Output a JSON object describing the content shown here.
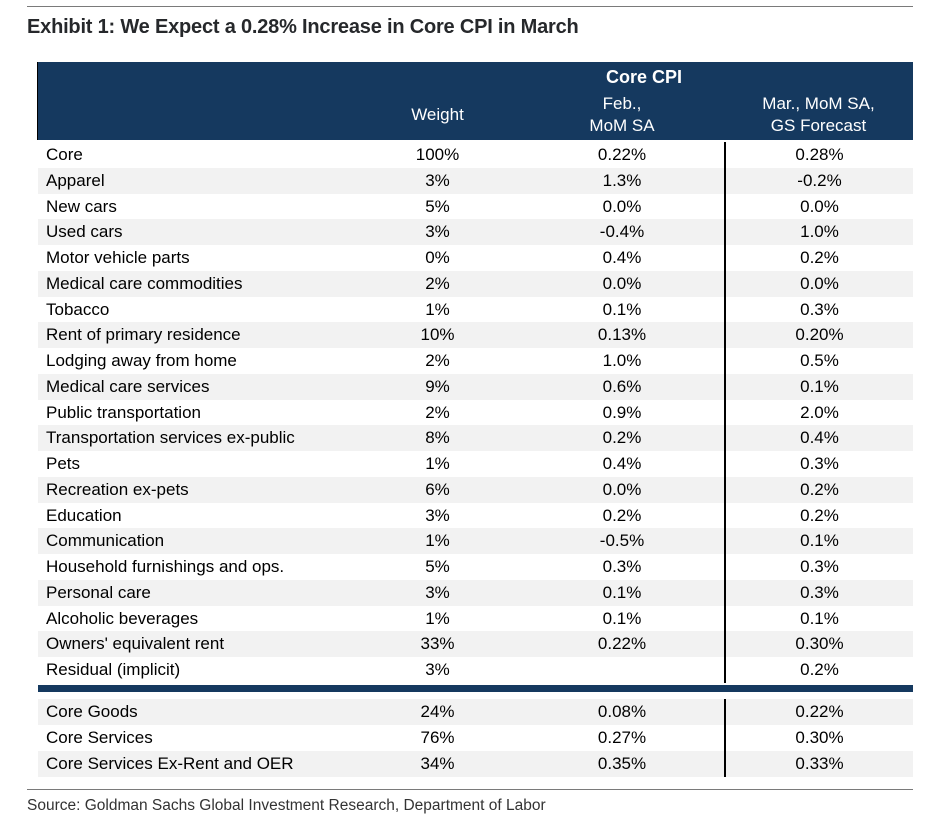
{
  "exhibit": {
    "title": "Exhibit 1: We Expect a 0.28% Increase in Core CPI in March",
    "source": "Source: Goldman Sachs Global Investment Research, Department of Labor"
  },
  "table": {
    "group_header": "Core CPI",
    "header": {
      "weight": "Weight",
      "feb": [
        "Feb.,",
        "MoM SA"
      ],
      "mar": [
        "Mar., MoM SA,",
        "GS Forecast"
      ]
    }
  },
  "colors": {
    "header_navy": "#15395f",
    "row_shade": "#f2f2f2",
    "divider_black": "#000000",
    "rule_gray": "#7a7a7a"
  },
  "chart_data": {
    "type": "table",
    "title": "Exhibit 1: We Expect a 0.28% Increase in Core CPI in March",
    "group_header": "Core CPI",
    "columns": [
      "",
      "Weight",
      "Feb., MoM SA",
      "Mar., MoM SA, GS Forecast"
    ],
    "rows": [
      {
        "label": "Core",
        "weight": "100%",
        "feb": "0.22%",
        "mar": "0.28%"
      },
      {
        "label": "Apparel",
        "weight": "3%",
        "feb": "1.3%",
        "mar": "-0.2%"
      },
      {
        "label": "New cars",
        "weight": "5%",
        "feb": "0.0%",
        "mar": "0.0%"
      },
      {
        "label": "Used cars",
        "weight": "3%",
        "feb": "-0.4%",
        "mar": "1.0%"
      },
      {
        "label": "Motor vehicle parts",
        "weight": "0%",
        "feb": "0.4%",
        "mar": "0.2%"
      },
      {
        "label": "Medical care commodities",
        "weight": "2%",
        "feb": "0.0%",
        "mar": "0.0%"
      },
      {
        "label": "Tobacco",
        "weight": "1%",
        "feb": "0.1%",
        "mar": "0.3%"
      },
      {
        "label": "Rent of primary residence",
        "weight": "10%",
        "feb": "0.13%",
        "mar": "0.20%"
      },
      {
        "label": "Lodging away from home",
        "weight": "2%",
        "feb": "1.0%",
        "mar": "0.5%"
      },
      {
        "label": "Medical care services",
        "weight": "9%",
        "feb": "0.6%",
        "mar": "0.1%"
      },
      {
        "label": "Public transportation",
        "weight": "2%",
        "feb": "0.9%",
        "mar": "2.0%"
      },
      {
        "label": "Transportation services ex-public",
        "weight": "8%",
        "feb": "0.2%",
        "mar": "0.4%"
      },
      {
        "label": "Pets",
        "weight": "1%",
        "feb": "0.4%",
        "mar": "0.3%"
      },
      {
        "label": "Recreation ex-pets",
        "weight": "6%",
        "feb": "0.0%",
        "mar": "0.2%"
      },
      {
        "label": "Education",
        "weight": "3%",
        "feb": "0.2%",
        "mar": "0.2%"
      },
      {
        "label": "Communication",
        "weight": "1%",
        "feb": "-0.5%",
        "mar": "0.1%"
      },
      {
        "label": "Household furnishings and ops.",
        "weight": "5%",
        "feb": "0.3%",
        "mar": "0.3%"
      },
      {
        "label": "Personal care",
        "weight": "3%",
        "feb": "0.1%",
        "mar": "0.3%"
      },
      {
        "label": "Alcoholic beverages",
        "weight": "1%",
        "feb": "0.1%",
        "mar": "0.1%"
      },
      {
        "label": "Owners' equivalent rent",
        "weight": "33%",
        "feb": "0.22%",
        "mar": "0.30%"
      },
      {
        "label": "Residual (implicit)",
        "weight": "3%",
        "feb": "",
        "mar": "0.2%"
      }
    ],
    "summary_rows": [
      {
        "label": "Core Goods",
        "weight": "24%",
        "feb": "0.08%",
        "mar": "0.22%"
      },
      {
        "label": "Core Services",
        "weight": "76%",
        "feb": "0.27%",
        "mar": "0.30%"
      },
      {
        "label": "Core Services Ex-Rent and OER",
        "weight": "34%",
        "feb": "0.35%",
        "mar": "0.33%"
      }
    ]
  }
}
